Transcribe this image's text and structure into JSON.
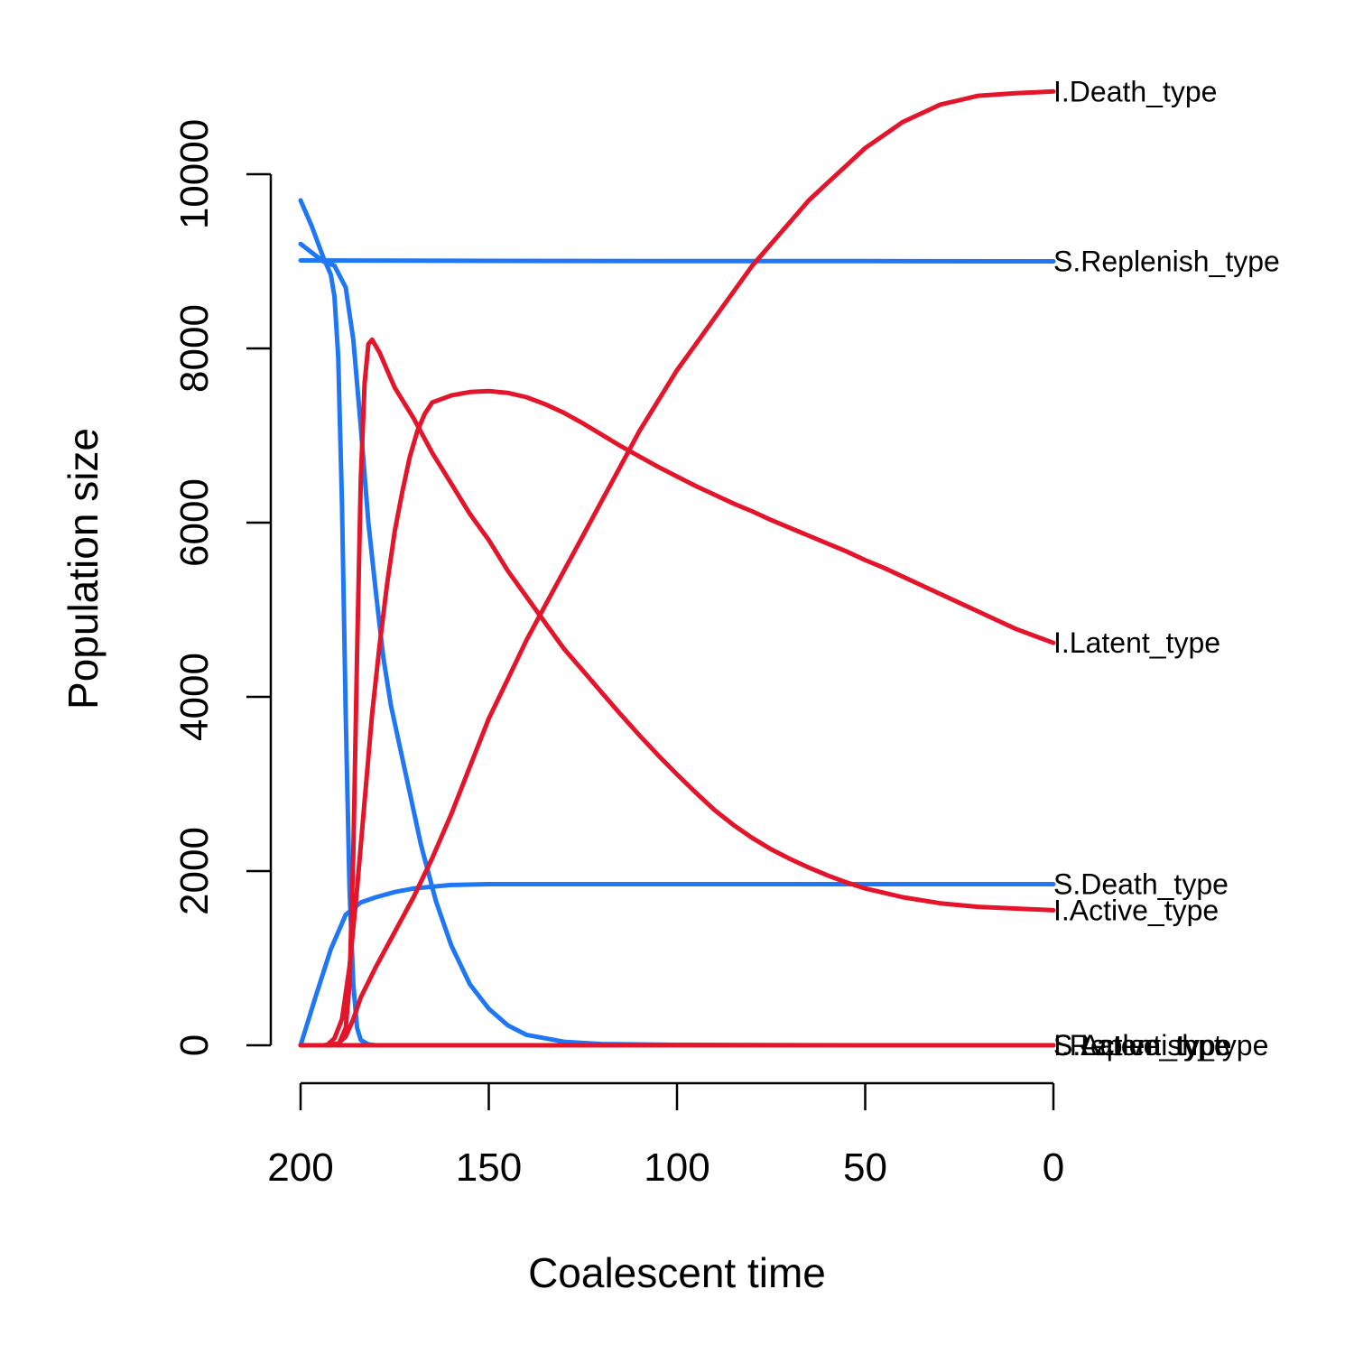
{
  "chart_data": {
    "type": "line",
    "title": "",
    "xlabel": "Coalescent time",
    "ylabel": "Population size",
    "xlim": [
      200,
      0
    ],
    "ylim": [
      0,
      10000
    ],
    "x_ticks": [
      200,
      150,
      100,
      50,
      0
    ],
    "x_tick_labels": [
      "200",
      "150",
      "100",
      "50",
      "0"
    ],
    "y_ticks": [
      0,
      2000,
      4000,
      6000,
      8000,
      10000
    ],
    "y_tick_labels": [
      "0",
      "2000",
      "4000",
      "6000",
      "8000",
      "10000"
    ],
    "grid": false,
    "legend": "none",
    "colors": {
      "S": "#1f77f5",
      "I": "#e4142b"
    },
    "series": [
      {
        "name": "S.Replenish_type",
        "group": "S",
        "end_label": "S.Replenish_type",
        "end_value": 9000,
        "points": [
          [
            200,
            9010
          ],
          [
            150,
            9005
          ],
          [
            100,
            9003
          ],
          [
            50,
            9002
          ],
          [
            0,
            9000
          ]
        ]
      },
      {
        "name": "S.Death_type",
        "group": "S",
        "end_label": "S.Death_type",
        "end_value": 1850,
        "points": [
          [
            200,
            0
          ],
          [
            196,
            560
          ],
          [
            192,
            1100
          ],
          [
            188,
            1500
          ],
          [
            184,
            1640
          ],
          [
            180,
            1700
          ],
          [
            175,
            1760
          ],
          [
            170,
            1800
          ],
          [
            160,
            1840
          ],
          [
            150,
            1850
          ],
          [
            120,
            1850
          ],
          [
            80,
            1850
          ],
          [
            40,
            1850
          ],
          [
            0,
            1850
          ]
        ]
      },
      {
        "name": "",
        "group": "S",
        "end_label": "S.Latent_type",
        "end_value": 0,
        "points": [
          [
            200,
            9700
          ],
          [
            197,
            9400
          ],
          [
            194,
            9050
          ],
          [
            192,
            8850
          ],
          [
            191,
            8600
          ],
          [
            190,
            7900
          ],
          [
            189,
            6200
          ],
          [
            188,
            3800
          ],
          [
            187,
            1800
          ],
          [
            186,
            700
          ],
          [
            185,
            200
          ],
          [
            184,
            60
          ],
          [
            182,
            10
          ],
          [
            180,
            0
          ],
          [
            150,
            0
          ],
          [
            100,
            0
          ],
          [
            50,
            0
          ],
          [
            0,
            0
          ]
        ]
      },
      {
        "name": "",
        "group": "S",
        "end_label": "S.Active_type",
        "end_value": 0,
        "points": [
          [
            200,
            9200
          ],
          [
            197,
            9100
          ],
          [
            194,
            9000
          ],
          [
            191,
            8950
          ],
          [
            188,
            8700
          ],
          [
            186,
            8100
          ],
          [
            184,
            7100
          ],
          [
            182,
            6000
          ],
          [
            180,
            5200
          ],
          [
            178,
            4450
          ],
          [
            176,
            3900
          ],
          [
            172,
            3100
          ],
          [
            168,
            2300
          ],
          [
            164,
            1650
          ],
          [
            160,
            1150
          ],
          [
            155,
            700
          ],
          [
            150,
            420
          ],
          [
            145,
            230
          ],
          [
            140,
            120
          ],
          [
            130,
            40
          ],
          [
            120,
            15
          ],
          [
            100,
            5
          ],
          [
            50,
            0
          ],
          [
            0,
            0
          ]
        ]
      },
      {
        "name": "I.Death_type",
        "group": "I",
        "end_label": "I.Death_type",
        "end_value": 10950,
        "points": [
          [
            200,
            0
          ],
          [
            194,
            0
          ],
          [
            190,
            20
          ],
          [
            188,
            100
          ],
          [
            186,
            300
          ],
          [
            184,
            550
          ],
          [
            180,
            900
          ],
          [
            175,
            1300
          ],
          [
            170,
            1700
          ],
          [
            165,
            2150
          ],
          [
            160,
            2650
          ],
          [
            155,
            3200
          ],
          [
            150,
            3750
          ],
          [
            145,
            4200
          ],
          [
            140,
            4650
          ],
          [
            135,
            5050
          ],
          [
            130,
            5450
          ],
          [
            125,
            5850
          ],
          [
            120,
            6250
          ],
          [
            115,
            6650
          ],
          [
            110,
            7050
          ],
          [
            105,
            7400
          ],
          [
            100,
            7750
          ],
          [
            95,
            8050
          ],
          [
            90,
            8350
          ],
          [
            85,
            8650
          ],
          [
            80,
            8950
          ],
          [
            75,
            9200
          ],
          [
            70,
            9450
          ],
          [
            65,
            9700
          ],
          [
            60,
            9900
          ],
          [
            55,
            10100
          ],
          [
            50,
            10300
          ],
          [
            45,
            10450
          ],
          [
            40,
            10600
          ],
          [
            35,
            10700
          ],
          [
            30,
            10800
          ],
          [
            25,
            10850
          ],
          [
            20,
            10900
          ],
          [
            10,
            10930
          ],
          [
            0,
            10950
          ]
        ]
      },
      {
        "name": "I.Latent_type",
        "group": "I",
        "end_label": "I.Latent_type",
        "end_value": 4620,
        "points": [
          [
            200,
            0
          ],
          [
            193,
            0
          ],
          [
            191,
            80
          ],
          [
            189,
            300
          ],
          [
            187,
            900
          ],
          [
            185,
            1800
          ],
          [
            183,
            2800
          ],
          [
            181,
            3800
          ],
          [
            179,
            4600
          ],
          [
            177,
            5300
          ],
          [
            175,
            5900
          ],
          [
            173,
            6350
          ],
          [
            171,
            6750
          ],
          [
            169,
            7050
          ],
          [
            167,
            7250
          ],
          [
            165,
            7380
          ],
          [
            160,
            7460
          ],
          [
            155,
            7500
          ],
          [
            150,
            7510
          ],
          [
            145,
            7490
          ],
          [
            140,
            7440
          ],
          [
            135,
            7360
          ],
          [
            130,
            7260
          ],
          [
            125,
            7140
          ],
          [
            120,
            7010
          ],
          [
            115,
            6880
          ],
          [
            110,
            6760
          ],
          [
            105,
            6640
          ],
          [
            100,
            6530
          ],
          [
            95,
            6420
          ],
          [
            90,
            6320
          ],
          [
            85,
            6220
          ],
          [
            80,
            6130
          ],
          [
            75,
            6030
          ],
          [
            70,
            5940
          ],
          [
            65,
            5850
          ],
          [
            60,
            5760
          ],
          [
            55,
            5670
          ],
          [
            50,
            5570
          ],
          [
            45,
            5480
          ],
          [
            40,
            5380
          ],
          [
            35,
            5280
          ],
          [
            30,
            5180
          ],
          [
            25,
            5080
          ],
          [
            20,
            4980
          ],
          [
            15,
            4880
          ],
          [
            10,
            4780
          ],
          [
            5,
            4700
          ],
          [
            0,
            4620
          ]
        ]
      },
      {
        "name": "I.Active_type",
        "group": "I",
        "end_label": "I.Active_type",
        "end_value": 1550,
        "points": [
          [
            200,
            0
          ],
          [
            190,
            0
          ],
          [
            188,
            200
          ],
          [
            187,
            700
          ],
          [
            186,
            2200
          ],
          [
            185,
            4500
          ],
          [
            184,
            6500
          ],
          [
            183,
            7600
          ],
          [
            182,
            8050
          ],
          [
            181,
            8100
          ],
          [
            179,
            7950
          ],
          [
            177,
            7750
          ],
          [
            175,
            7550
          ],
          [
            170,
            7200
          ],
          [
            165,
            6800
          ],
          [
            160,
            6450
          ],
          [
            155,
            6100
          ],
          [
            150,
            5800
          ],
          [
            145,
            5450
          ],
          [
            140,
            5150
          ],
          [
            135,
            4850
          ],
          [
            130,
            4550
          ],
          [
            125,
            4300
          ],
          [
            120,
            4050
          ],
          [
            115,
            3800
          ],
          [
            110,
            3560
          ],
          [
            105,
            3330
          ],
          [
            100,
            3110
          ],
          [
            95,
            2900
          ],
          [
            90,
            2700
          ],
          [
            85,
            2530
          ],
          [
            80,
            2380
          ],
          [
            75,
            2250
          ],
          [
            70,
            2140
          ],
          [
            65,
            2040
          ],
          [
            60,
            1950
          ],
          [
            55,
            1870
          ],
          [
            50,
            1800
          ],
          [
            45,
            1750
          ],
          [
            40,
            1700
          ],
          [
            30,
            1630
          ],
          [
            20,
            1590
          ],
          [
            10,
            1570
          ],
          [
            0,
            1550
          ]
        ]
      },
      {
        "name": "",
        "group": "I",
        "end_label": "I.Replenish_type",
        "end_value": 0,
        "points": [
          [
            200,
            0
          ],
          [
            150,
            0
          ],
          [
            100,
            0
          ],
          [
            50,
            0
          ],
          [
            0,
            0
          ]
        ]
      }
    ]
  }
}
